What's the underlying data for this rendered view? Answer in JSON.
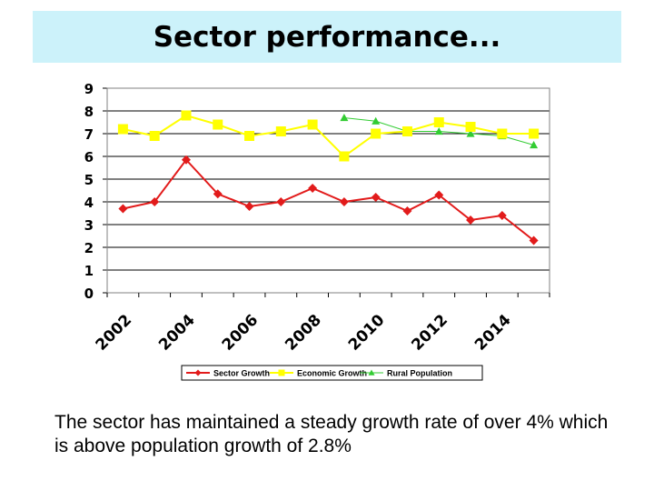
{
  "slide": {
    "title": "Sector performance...",
    "caption": "The sector has maintained a steady growth rate of over 4% which is above population growth of 2.8%"
  },
  "colors": {
    "sector": "#e21b1b",
    "economic": "#ffff00",
    "rural": "#33cc33",
    "grid": "#000000",
    "title_bg": "#ccf2fa"
  },
  "chart_data": {
    "type": "line",
    "title": "",
    "xlabel": "",
    "ylabel": "",
    "ylim": [
      0,
      9
    ],
    "yticks": [
      "0",
      "1",
      "2",
      "3",
      "4",
      "5",
      "6",
      "7",
      "8",
      "9"
    ],
    "x": [
      "2002",
      "2003",
      "2004",
      "2005",
      "2006",
      "2007",
      "2008",
      "2009",
      "2010",
      "2011",
      "2012",
      "2013",
      "2014",
      "2015"
    ],
    "xtick_labels": [
      "2002",
      "2004",
      "2006",
      "2008",
      "2010",
      "2012",
      "2014"
    ],
    "grid": true,
    "legend_position": "bottom",
    "series": [
      {
        "name": "Sector Growth",
        "marker": "diamond",
        "values": [
          3.7,
          4.0,
          5.85,
          4.35,
          3.8,
          4.0,
          4.6,
          4.0,
          4.2,
          3.6,
          4.3,
          3.2,
          3.4,
          2.3
        ]
      },
      {
        "name": "Economic Growth",
        "marker": "square",
        "values": [
          7.2,
          6.9,
          7.8,
          7.4,
          6.9,
          7.1,
          7.4,
          6.0,
          7.0,
          7.1,
          7.5,
          7.3,
          7.0,
          7.0
        ]
      },
      {
        "name": "Rural Population",
        "marker": "triangle",
        "values": [
          null,
          null,
          null,
          null,
          null,
          null,
          null,
          7.7,
          7.55,
          7.1,
          7.1,
          7.0,
          6.9,
          6.5
        ]
      }
    ]
  }
}
